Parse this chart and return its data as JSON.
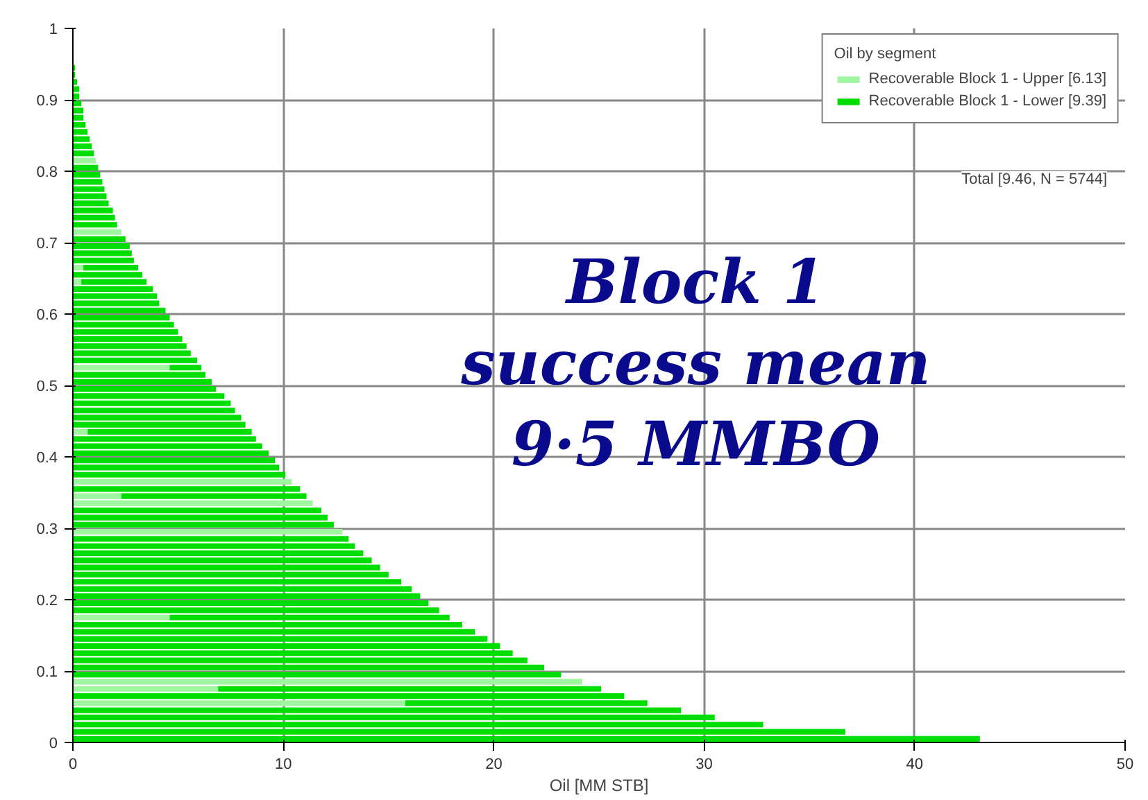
{
  "chart_data": {
    "type": "bar",
    "orientation": "horizontal",
    "stacked": true,
    "xlabel": "Oil [MM STB]",
    "legend_title": "Oil by segment",
    "legend": "top right",
    "grid": true,
    "xlim": [
      0,
      50
    ],
    "xticks": [
      0,
      10,
      20,
      30,
      40,
      50
    ],
    "ylim": [
      0,
      1
    ],
    "yticks": [
      0,
      0.1,
      0.2,
      0.3,
      0.4,
      0.5,
      0.6,
      0.7,
      0.8,
      0.9,
      1
    ],
    "annotations": [
      "Block 1\nsuccess mean\n9·5 MMBO",
      "Total [9.46, N = 5744]"
    ],
    "x": [
      0.005,
      0.015,
      0.025,
      0.035,
      0.045,
      0.055,
      0.065,
      0.075,
      0.085,
      0.095,
      0.105,
      0.115,
      0.125,
      0.135,
      0.145,
      0.155,
      0.165,
      0.175,
      0.185,
      0.195,
      0.205,
      0.215,
      0.225,
      0.235,
      0.245,
      0.255,
      0.265,
      0.275,
      0.285,
      0.295,
      0.305,
      0.315,
      0.325,
      0.335,
      0.345,
      0.355,
      0.365,
      0.375,
      0.385,
      0.395,
      0.405,
      0.415,
      0.425,
      0.435,
      0.445,
      0.455,
      0.465,
      0.475,
      0.485,
      0.495,
      0.505,
      0.515,
      0.525,
      0.535,
      0.545,
      0.555,
      0.565,
      0.575,
      0.585,
      0.595,
      0.605,
      0.615,
      0.625,
      0.635,
      0.645,
      0.655,
      0.665,
      0.675,
      0.685,
      0.695,
      0.705,
      0.715,
      0.725,
      0.735,
      0.745,
      0.755,
      0.765,
      0.775,
      0.785,
      0.795,
      0.805,
      0.815,
      0.825,
      0.835,
      0.845,
      0.855,
      0.865,
      0.875,
      0.885,
      0.895,
      0.905,
      0.915,
      0.925,
      0.935,
      0.945
    ],
    "series": [
      {
        "name": "Recoverable Block 1 - Upper [6.13]",
        "color": "#a0f5a0",
        "values": [
          null,
          null,
          null,
          null,
          null,
          15.8,
          null,
          6.9,
          24.2,
          null,
          null,
          null,
          null,
          null,
          null,
          null,
          null,
          4.6,
          null,
          null,
          null,
          null,
          null,
          null,
          null,
          null,
          null,
          null,
          null,
          12.8,
          null,
          null,
          null,
          11.4,
          2.3,
          null,
          10.4,
          null,
          null,
          null,
          null,
          null,
          null,
          0.7,
          null,
          null,
          null,
          null,
          null,
          null,
          null,
          null,
          4.6,
          null,
          null,
          null,
          null,
          null,
          null,
          null,
          null,
          null,
          null,
          null,
          0.4,
          null,
          0.5,
          null,
          null,
          null,
          null,
          2.3,
          null,
          null,
          null,
          null,
          null,
          null,
          null,
          null,
          null,
          1.1,
          null,
          null,
          null,
          null,
          null,
          null,
          null,
          null,
          null,
          null,
          null,
          null,
          null
        ]
      },
      {
        "name": "Recoverable Block 1 - Lower [9.39]",
        "color": "#00dd00",
        "values": [
          43.1,
          36.7,
          32.8,
          30.5,
          28.9,
          11.5,
          26.2,
          18.2,
          null,
          23.2,
          22.4,
          21.6,
          20.9,
          20.3,
          19.7,
          19.1,
          18.5,
          13.3,
          17.4,
          16.9,
          16.5,
          16.1,
          15.6,
          15.0,
          14.6,
          14.2,
          13.8,
          13.4,
          13.1,
          null,
          12.4,
          12.1,
          11.8,
          null,
          8.8,
          10.8,
          null,
          10.1,
          9.8,
          9.6,
          9.3,
          9.0,
          8.7,
          7.8,
          8.2,
          8.0,
          7.7,
          7.5,
          7.2,
          6.8,
          6.6,
          6.3,
          1.5,
          5.9,
          5.6,
          5.4,
          5.2,
          5.0,
          4.8,
          4.6,
          4.4,
          4.1,
          4.0,
          3.8,
          3.1,
          3.3,
          2.6,
          2.9,
          2.8,
          2.7,
          2.5,
          null,
          2.1,
          2.0,
          1.9,
          1.7,
          1.6,
          1.5,
          1.4,
          1.3,
          1.2,
          null,
          1.0,
          0.9,
          0.8,
          0.7,
          0.6,
          0.5,
          0.5,
          0.4,
          0.3,
          0.3,
          0.2,
          0.1,
          0.1
        ]
      }
    ]
  }
}
